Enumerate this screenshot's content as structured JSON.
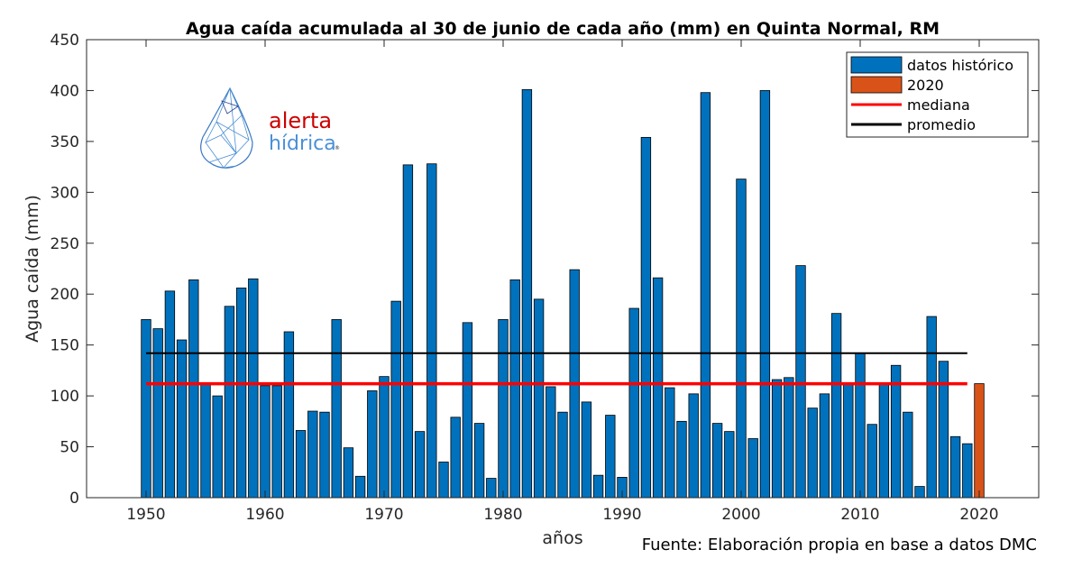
{
  "chart_data": {
    "type": "bar",
    "title": "Agua caída acumulada al 30 de junio de cada año (mm) en Quinta Normal, RM",
    "xlabel": "años",
    "ylabel": "Agua caída (mm)",
    "xlim": [
      1945,
      2025
    ],
    "ylim": [
      0,
      450
    ],
    "xticks": [
      "1950",
      "1960",
      "1970",
      "1980",
      "1990",
      "2000",
      "2010",
      "2020"
    ],
    "yticks": [
      "0",
      "50",
      "100",
      "150",
      "200",
      "250",
      "300",
      "350",
      "400",
      "450"
    ],
    "grid": false,
    "legend_position": "top-right",
    "source_note": "Fuente: Elaboración propia en base a datos DMC",
    "logo": {
      "line1": "alerta",
      "line2": "hídrica",
      "mark": "®"
    },
    "colors": {
      "historic": "#0072BD",
      "current": "#D95319",
      "median": "#FF0000",
      "mean": "#000000"
    },
    "series": [
      {
        "name": "datos histórico",
        "x": [
          1950,
          1951,
          1952,
          1953,
          1954,
          1955,
          1956,
          1957,
          1958,
          1959,
          1960,
          1961,
          1962,
          1963,
          1964,
          1965,
          1966,
          1967,
          1968,
          1969,
          1970,
          1971,
          1972,
          1973,
          1974,
          1975,
          1976,
          1977,
          1978,
          1979,
          1980,
          1981,
          1982,
          1983,
          1984,
          1985,
          1986,
          1987,
          1988,
          1989,
          1990,
          1991,
          1992,
          1993,
          1994,
          1995,
          1996,
          1997,
          1998,
          1999,
          2000,
          2001,
          2002,
          2003,
          2004,
          2005,
          2006,
          2007,
          2008,
          2009,
          2010,
          2011,
          2012,
          2013,
          2014,
          2015,
          2016,
          2017,
          2018,
          2019
        ],
        "values": [
          175,
          166,
          203,
          155,
          214,
          112,
          100,
          188,
          206,
          215,
          110,
          110,
          163,
          66,
          85,
          84,
          175,
          49,
          21,
          105,
          119,
          193,
          327,
          65,
          328,
          35,
          79,
          172,
          73,
          19,
          175,
          214,
          401,
          195,
          109,
          84,
          224,
          94,
          22,
          81,
          20,
          186,
          354,
          216,
          108,
          75,
          102,
          398,
          73,
          65,
          313,
          58,
          400,
          116,
          118,
          228,
          88,
          102,
          181,
          112,
          142,
          72,
          113,
          130,
          84,
          11,
          178,
          134,
          60,
          53
        ]
      },
      {
        "name": "2020",
        "x": [
          2020
        ],
        "values": [
          112
        ]
      },
      {
        "name": "mediana",
        "type": "line",
        "x": [
          1950,
          2019
        ],
        "values": [
          112,
          112
        ]
      },
      {
        "name": "promedio",
        "type": "line",
        "x": [
          1950,
          2019
        ],
        "values": [
          142,
          142
        ]
      }
    ]
  }
}
